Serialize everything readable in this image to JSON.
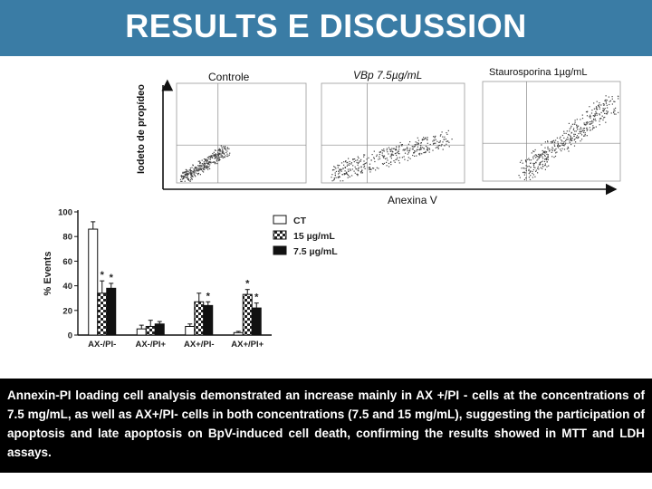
{
  "slide": {
    "title": "RESULTS E DISCUSSION",
    "caption": "Annexin-PI loading cell analysis demonstrated an increase mainly in AX +/PI - cells at the concentrations of 7.5 mg/mL, as well as AX+/PI- cells in both concentrations (7.5 and 15 mg/mL), suggesting the participation of apoptosis and late apoptosis on BpV-induced cell death, confirming the results showed in MTT and LDH assays.",
    "header_color": "#3a7ca5"
  },
  "flow": {
    "panels": [
      {
        "label": "Controle"
      },
      {
        "label": "VBp 7.5µg/mL"
      },
      {
        "label": "Staurosporina 1µg/mL"
      }
    ],
    "y_axis_label": "Iodeto de propídeo",
    "x_axis_label": "Anexina V"
  },
  "chart_data": {
    "type": "bar",
    "categories": [
      "AX-/PI-",
      "AX-/PI+",
      "AX+/PI-",
      "AX+/PI+"
    ],
    "series": [
      {
        "name": "CT",
        "values": [
          86,
          5,
          7,
          2
        ],
        "errors": [
          6,
          3,
          2,
          1
        ],
        "pattern": "white"
      },
      {
        "name": "15 µg/mL",
        "values": [
          34,
          7,
          27,
          33
        ],
        "errors": [
          10,
          5,
          7,
          4
        ],
        "pattern": "checker"
      },
      {
        "name": "7.5 µg/mL",
        "values": [
          38,
          9,
          24,
          22
        ],
        "errors": [
          4,
          2,
          3,
          4
        ],
        "pattern": "black"
      }
    ],
    "significance": [
      {
        "category": 0,
        "series": 1,
        "label": "*"
      },
      {
        "category": 0,
        "series": 2,
        "label": "*"
      },
      {
        "category": 2,
        "series": 2,
        "label": "*"
      },
      {
        "category": 3,
        "series": 1,
        "label": "*"
      },
      {
        "category": 3,
        "series": 2,
        "label": "*"
      }
    ],
    "ylabel": "% Events",
    "ylim": [
      0,
      100
    ],
    "yticks": [
      "0",
      "20",
      "40",
      "60",
      "80",
      "100"
    ],
    "legend_position": "top-right"
  }
}
